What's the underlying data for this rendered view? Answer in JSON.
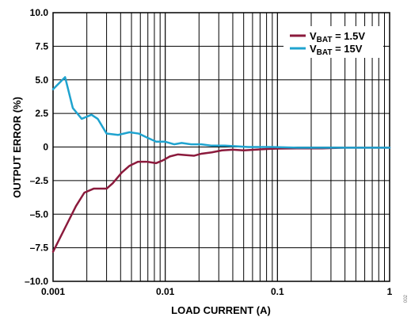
{
  "chart_data": {
    "type": "line",
    "xscale": "log",
    "xlim": [
      0.001,
      1
    ],
    "ylim": [
      -10,
      10
    ],
    "xlabel": "LOAD CURRENT (A)",
    "ylabel": "OUTPUT ERROR (%)",
    "grid": true,
    "legend_position": "top-right",
    "x_ticks": [
      {
        "value": 0.001,
        "label": "0.001"
      },
      {
        "value": 0.01,
        "label": "0.01"
      },
      {
        "value": 0.1,
        "label": "0.1"
      },
      {
        "value": 1,
        "label": "1"
      }
    ],
    "y_ticks": [
      {
        "value": 10,
        "label": "10.0"
      },
      {
        "value": 7.5,
        "label": "7.5"
      },
      {
        "value": 5,
        "label": "5.0"
      },
      {
        "value": 2.5,
        "label": "2.5"
      },
      {
        "value": 0,
        "label": "0"
      },
      {
        "value": -2.5,
        "label": "–2.5"
      },
      {
        "value": -5,
        "label": "–5.0"
      },
      {
        "value": -7.5,
        "label": "–7.5"
      },
      {
        "value": -10,
        "label": "–10.0"
      }
    ],
    "series": [
      {
        "legend_main": "V",
        "legend_sub": "BAT",
        "legend_rest": " = 1.5V",
        "color": "#8b1a3c",
        "x": [
          0.001,
          0.0013,
          0.0016,
          0.0019,
          0.0023,
          0.0027,
          0.003,
          0.0034,
          0.0041,
          0.0048,
          0.0057,
          0.0069,
          0.0083,
          0.0095,
          0.011,
          0.013,
          0.015,
          0.018,
          0.021,
          0.026,
          0.032,
          0.04,
          0.05,
          0.063,
          0.08,
          0.1,
          0.15,
          0.25,
          0.4,
          0.63,
          1
        ],
        "y": [
          -7.8,
          -5.9,
          -4.4,
          -3.4,
          -3.1,
          -3.1,
          -3.1,
          -2.7,
          -1.9,
          -1.4,
          -1.1,
          -1.1,
          -1.2,
          -1.0,
          -0.7,
          -0.55,
          -0.6,
          -0.65,
          -0.5,
          -0.4,
          -0.25,
          -0.2,
          -0.25,
          -0.2,
          -0.15,
          -0.12,
          -0.1,
          -0.1,
          -0.05,
          -0.05,
          -0.05
        ]
      },
      {
        "legend_main": "V",
        "legend_sub": "BAT",
        "legend_rest": " = 15V",
        "color": "#1fa3cf",
        "x": [
          0.001,
          0.00128,
          0.0015,
          0.0018,
          0.0022,
          0.0025,
          0.003,
          0.0038,
          0.0048,
          0.0058,
          0.0069,
          0.0083,
          0.0099,
          0.012,
          0.014,
          0.017,
          0.021,
          0.026,
          0.034,
          0.043,
          0.055,
          0.07,
          0.09,
          0.15,
          0.3,
          0.6,
          1
        ],
        "y": [
          4.3,
          5.2,
          2.9,
          2.1,
          2.4,
          2.1,
          1.0,
          0.9,
          1.1,
          1.0,
          0.7,
          0.4,
          0.4,
          0.2,
          0.3,
          0.2,
          0.2,
          0.1,
          0.1,
          0.05,
          0.0,
          0.0,
          0.0,
          -0.05,
          -0.05,
          -0.05,
          -0.05
        ]
      }
    ]
  },
  "side_label": "002"
}
